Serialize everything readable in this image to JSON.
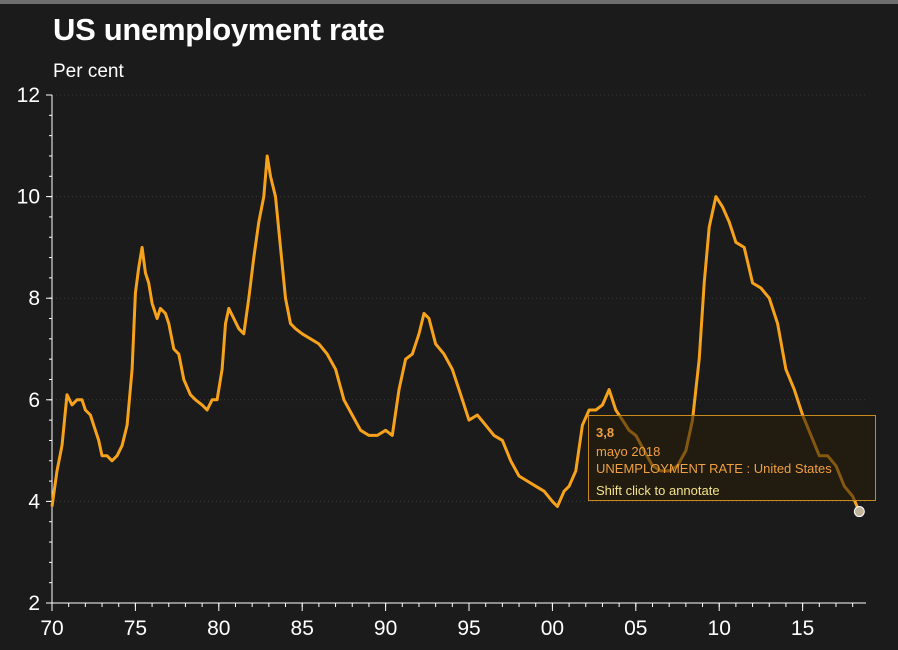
{
  "title": "US unemployment rate",
  "subtitle": "Per cent",
  "colors": {
    "background": "#1b1b1b",
    "line": "#f7a21b",
    "axis": "#ffffff",
    "grid": "#3a3a3a",
    "tooltip_border": "#c98a1a",
    "tooltip_text": "#f0a040",
    "tooltip_hint": "#f4e38a"
  },
  "tooltip": {
    "value": "3,8",
    "date": "mayo 2018",
    "series": "UNEMPLOYMENT RATE : United States",
    "hint": "Shift click to annotate"
  },
  "chart_data": {
    "type": "line",
    "title": "US unemployment rate",
    "ylabel": "Per cent",
    "ylim": [
      2,
      12
    ],
    "xlim": [
      1970,
      2018.8
    ],
    "y_ticks": [
      2,
      4,
      6,
      8,
      10,
      12
    ],
    "x_ticks": [
      {
        "value": 1970,
        "label": "70"
      },
      {
        "value": 1975,
        "label": "75"
      },
      {
        "value": 1980,
        "label": "80"
      },
      {
        "value": 1985,
        "label": "85"
      },
      {
        "value": 1990,
        "label": "90"
      },
      {
        "value": 1995,
        "label": "95"
      },
      {
        "value": 2000,
        "label": "00"
      },
      {
        "value": 2005,
        "label": "05"
      },
      {
        "value": 2010,
        "label": "10"
      },
      {
        "value": 2015,
        "label": "15"
      }
    ],
    "grid": "horizontal dotted",
    "series": [
      {
        "name": "UNEMPLOYMENT RATE : United States",
        "x": [
          1970.0,
          1970.3,
          1970.6,
          1970.9,
          1971.2,
          1971.5,
          1971.8,
          1972.0,
          1972.3,
          1972.5,
          1972.8,
          1973.0,
          1973.3,
          1973.6,
          1973.9,
          1974.2,
          1974.5,
          1974.8,
          1975.0,
          1975.2,
          1975.4,
          1975.6,
          1975.8,
          1976.0,
          1976.3,
          1976.5,
          1976.8,
          1977.0,
          1977.3,
          1977.6,
          1977.9,
          1978.3,
          1978.6,
          1979.0,
          1979.3,
          1979.6,
          1979.9,
          1980.2,
          1980.4,
          1980.6,
          1980.9,
          1981.2,
          1981.5,
          1981.8,
          1982.1,
          1982.4,
          1982.7,
          1982.9,
          1983.1,
          1983.4,
          1983.7,
          1984.0,
          1984.3,
          1984.6,
          1985.0,
          1985.5,
          1986.0,
          1986.5,
          1987.0,
          1987.5,
          1988.0,
          1988.5,
          1989.0,
          1989.5,
          1990.0,
          1990.4,
          1990.8,
          1991.2,
          1991.6,
          1992.0,
          1992.3,
          1992.6,
          1993.0,
          1993.5,
          1994.0,
          1994.5,
          1995.0,
          1995.5,
          1996.0,
          1996.5,
          1997.0,
          1997.5,
          1998.0,
          1998.5,
          1999.0,
          1999.5,
          2000.0,
          2000.3,
          2000.7,
          2001.0,
          2001.4,
          2001.8,
          2002.2,
          2002.6,
          2003.0,
          2003.4,
          2003.8,
          2004.2,
          2004.6,
          2005.0,
          2005.5,
          2006.0,
          2006.5,
          2007.0,
          2007.5,
          2008.0,
          2008.4,
          2008.8,
          2009.1,
          2009.4,
          2009.8,
          2010.2,
          2010.6,
          2011.0,
          2011.5,
          2012.0,
          2012.5,
          2013.0,
          2013.5,
          2014.0,
          2014.5,
          2015.0,
          2015.5,
          2016.0,
          2016.5,
          2017.0,
          2017.5,
          2018.0,
          2018.4
        ],
        "values": [
          3.9,
          4.6,
          5.1,
          6.1,
          5.9,
          6.0,
          6.0,
          5.8,
          5.7,
          5.5,
          5.2,
          4.9,
          4.9,
          4.8,
          4.9,
          5.1,
          5.5,
          6.6,
          8.1,
          8.6,
          9.0,
          8.5,
          8.3,
          7.9,
          7.6,
          7.8,
          7.7,
          7.5,
          7.0,
          6.9,
          6.4,
          6.1,
          6.0,
          5.9,
          5.8,
          6.0,
          6.0,
          6.6,
          7.5,
          7.8,
          7.6,
          7.4,
          7.3,
          8.0,
          8.8,
          9.5,
          10.0,
          10.8,
          10.4,
          10.0,
          9.0,
          8.0,
          7.5,
          7.4,
          7.3,
          7.2,
          7.1,
          6.9,
          6.6,
          6.0,
          5.7,
          5.4,
          5.3,
          5.3,
          5.4,
          5.3,
          6.2,
          6.8,
          6.9,
          7.3,
          7.7,
          7.6,
          7.1,
          6.9,
          6.6,
          6.1,
          5.6,
          5.7,
          5.5,
          5.3,
          5.2,
          4.8,
          4.5,
          4.4,
          4.3,
          4.2,
          4.0,
          3.9,
          4.2,
          4.3,
          4.6,
          5.5,
          5.8,
          5.8,
          5.9,
          6.2,
          5.8,
          5.6,
          5.4,
          5.3,
          5.0,
          4.7,
          4.6,
          4.6,
          4.7,
          5.0,
          5.6,
          6.8,
          8.3,
          9.4,
          10.0,
          9.8,
          9.5,
          9.1,
          9.0,
          8.3,
          8.2,
          8.0,
          7.5,
          6.6,
          6.2,
          5.7,
          5.3,
          4.9,
          4.9,
          4.7,
          4.3,
          4.1,
          3.8
        ]
      }
    ],
    "highlight": {
      "x": 2018.4,
      "value": 3.8
    }
  }
}
